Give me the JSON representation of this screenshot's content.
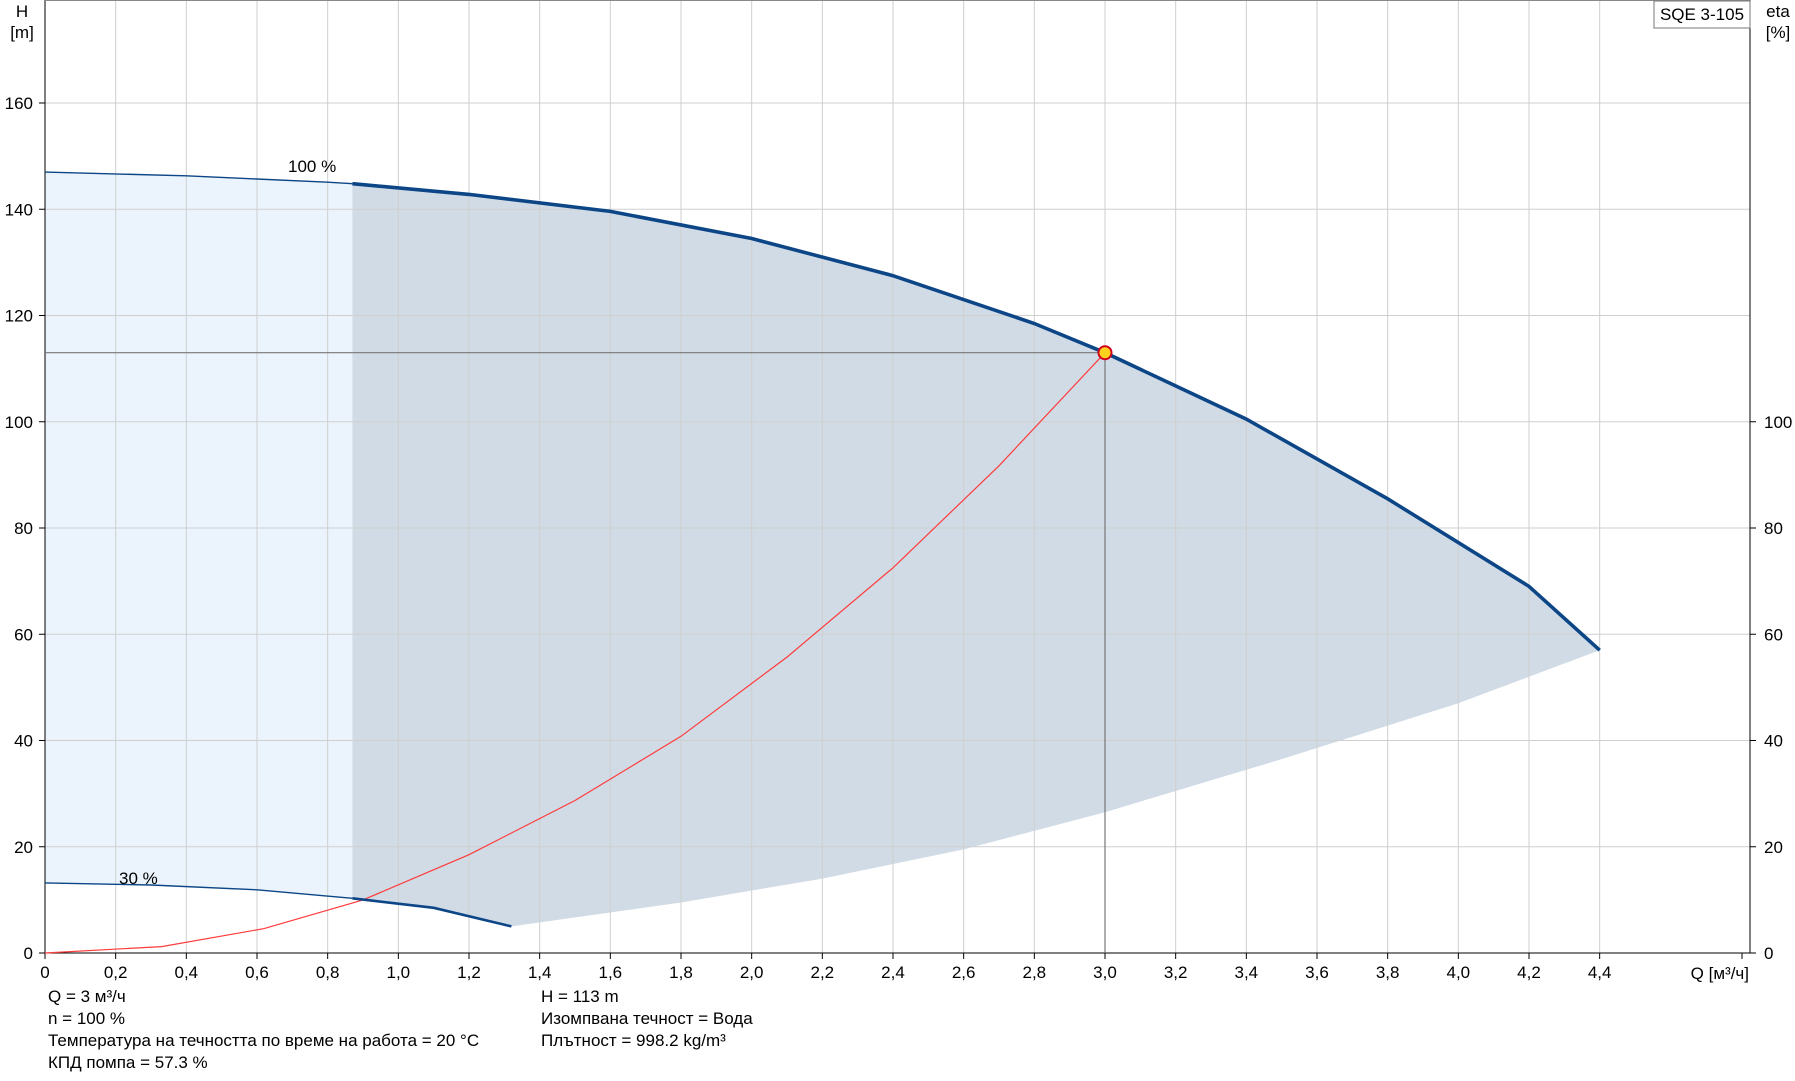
{
  "chart_data": {
    "type": "line",
    "model_label": "SQE 3-105",
    "xlabel": "Q [м³/ч]",
    "ylabel_left_line1": "H",
    "ylabel_left_line2": "[m]",
    "ylabel_right_line1": "eta",
    "ylabel_right_line2": "[%]",
    "xlim": [
      0,
      4.9
    ],
    "ylim_left": [
      0,
      180
    ],
    "ylim_right": [
      0,
      180
    ],
    "x_ticks": [
      {
        "v": 0,
        "label": "0"
      },
      {
        "v": 0.2,
        "label": "0,2"
      },
      {
        "v": 0.4,
        "label": "0,4"
      },
      {
        "v": 0.6,
        "label": "0,6"
      },
      {
        "v": 0.8,
        "label": "0,8"
      },
      {
        "v": 1.0,
        "label": "1,0"
      },
      {
        "v": 1.2,
        "label": "1,2"
      },
      {
        "v": 1.4,
        "label": "1,4"
      },
      {
        "v": 1.6,
        "label": "1,6"
      },
      {
        "v": 1.8,
        "label": "1,8"
      },
      {
        "v": 2.0,
        "label": "2,0"
      },
      {
        "v": 2.2,
        "label": "2,2"
      },
      {
        "v": 2.4,
        "label": "2,4"
      },
      {
        "v": 2.6,
        "label": "2,6"
      },
      {
        "v": 2.8,
        "label": "2,8"
      },
      {
        "v": 3.0,
        "label": "3,0"
      },
      {
        "v": 3.2,
        "label": "3,2"
      },
      {
        "v": 3.4,
        "label": "3,4"
      },
      {
        "v": 3.6,
        "label": "3,6"
      },
      {
        "v": 3.8,
        "label": "3,8"
      },
      {
        "v": 4.0,
        "label": "4,0"
      },
      {
        "v": 4.2,
        "label": "4,2"
      },
      {
        "v": 4.4,
        "label": "4,4"
      }
    ],
    "y_ticks_left": [
      {
        "v": 0,
        "label": "0"
      },
      {
        "v": 20,
        "label": "20"
      },
      {
        "v": 40,
        "label": "40"
      },
      {
        "v": 60,
        "label": "60"
      },
      {
        "v": 80,
        "label": "80"
      },
      {
        "v": 100,
        "label": "100"
      },
      {
        "v": 120,
        "label": "120"
      },
      {
        "v": 140,
        "label": "140"
      },
      {
        "v": 160,
        "label": "160"
      }
    ],
    "y_ticks_right": [
      {
        "v": 0,
        "label": "0"
      },
      {
        "v": 20,
        "label": "20"
      },
      {
        "v": 40,
        "label": "40"
      },
      {
        "v": 60,
        "label": "60"
      },
      {
        "v": 80,
        "label": "80"
      },
      {
        "v": 100,
        "label": "100"
      }
    ],
    "grid": true,
    "series": [
      {
        "name": "100 %",
        "color": "#0d4686",
        "points": [
          [
            0,
            147
          ],
          [
            0.4,
            146.3
          ],
          [
            0.8,
            145.1
          ],
          [
            0.87,
            144.8
          ],
          [
            1.2,
            142.8
          ],
          [
            1.6,
            139.6
          ],
          [
            2.0,
            134.5
          ],
          [
            2.4,
            127.5
          ],
          [
            2.8,
            118.5
          ],
          [
            3.0,
            113
          ],
          [
            3.4,
            100.5
          ],
          [
            3.8,
            85.5
          ],
          [
            4.2,
            69
          ],
          [
            4.4,
            57
          ]
        ]
      },
      {
        "name": "30 %",
        "color": "#0d4686",
        "points": [
          [
            0,
            13.2
          ],
          [
            0.3,
            12.8
          ],
          [
            0.6,
            11.9
          ],
          [
            0.87,
            10.3
          ],
          [
            1.1,
            8.5
          ],
          [
            1.32,
            5
          ]
        ]
      },
      {
        "name": "",
        "color": "#ff3b3b",
        "points": [
          [
            0,
            0
          ],
          [
            0.33,
            1.2
          ],
          [
            0.62,
            4.6
          ],
          [
            0.9,
            10
          ],
          [
            1.2,
            18.5
          ],
          [
            1.5,
            28.7
          ],
          [
            1.8,
            40.8
          ],
          [
            2.1,
            55.7
          ],
          [
            2.4,
            72.5
          ],
          [
            2.7,
            91.7
          ],
          [
            3.0,
            113
          ]
        ]
      }
    ],
    "lower_boundary": [
      [
        1.32,
        5
      ],
      [
        1.8,
        9.5
      ],
      [
        2.2,
        14
      ],
      [
        2.6,
        19.5
      ],
      [
        3.0,
        26.5
      ],
      [
        3.5,
        36.5
      ],
      [
        4.0,
        47
      ],
      [
        4.4,
        57
      ]
    ],
    "operating_point": {
      "x": 3.0,
      "y": 113
    },
    "colors": {
      "light_area": "#ebf4fd",
      "operating_area": "#d0dbe6",
      "curve": "#0d4686",
      "efficiency": "#ff3b3b",
      "point_fill": "#ffd21e",
      "point_stroke": "#d1001f"
    }
  },
  "info_left": [
    "Q = 3 м³/ч",
    "n = 100 %",
    "Температура на течността по време на работа = 20 °C",
    "КПД помпа = 57.3 %"
  ],
  "info_right": [
    "H = 113 m",
    "Изомпвана течност = Вода",
    "Плътност = 998.2 kg/m³"
  ]
}
